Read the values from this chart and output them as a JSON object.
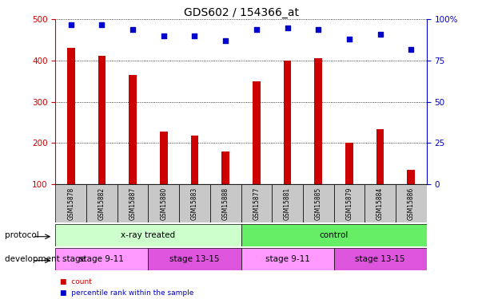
{
  "title": "GDS602 / 154366_at",
  "categories": [
    "GSM15878",
    "GSM15882",
    "GSM15887",
    "GSM15880",
    "GSM15883",
    "GSM15888",
    "GSM15877",
    "GSM15881",
    "GSM15885",
    "GSM15879",
    "GSM15884",
    "GSM15886"
  ],
  "bar_values": [
    430,
    412,
    365,
    228,
    218,
    178,
    350,
    400,
    405,
    200,
    233,
    135
  ],
  "scatter_values": [
    97,
    97,
    94,
    90,
    90,
    87,
    94,
    95,
    94,
    88,
    91,
    82
  ],
  "ylim_left": [
    100,
    500
  ],
  "ylim_right": [
    0,
    100
  ],
  "yticks_left": [
    100,
    200,
    300,
    400,
    500
  ],
  "yticks_right": [
    0,
    25,
    50,
    75,
    100
  ],
  "bar_color": "#cc0000",
  "scatter_color": "#0000cc",
  "protocol_groups": [
    {
      "label": "x-ray treated",
      "start": 0,
      "end": 6,
      "color": "#ccffcc"
    },
    {
      "label": "control",
      "start": 6,
      "end": 12,
      "color": "#66ee66"
    }
  ],
  "stage_groups": [
    {
      "label": "stage 9-11",
      "start": 0,
      "end": 3,
      "color": "#ff99ff"
    },
    {
      "label": "stage 13-15",
      "start": 3,
      "end": 6,
      "color": "#dd55dd"
    },
    {
      "label": "stage 9-11",
      "start": 6,
      "end": 9,
      "color": "#ff99ff"
    },
    {
      "label": "stage 13-15",
      "start": 9,
      "end": 12,
      "color": "#dd55dd"
    }
  ],
  "legend_items": [
    {
      "label": "count",
      "color": "#cc0000"
    },
    {
      "label": "percentile rank within the sample",
      "color": "#0000cc"
    }
  ],
  "label_protocol": "protocol",
  "label_stage": "development stage",
  "title_size": 10,
  "axis_tick_size": 7.5,
  "label_fontsize": 7.5,
  "cat_fontsize": 5.5
}
